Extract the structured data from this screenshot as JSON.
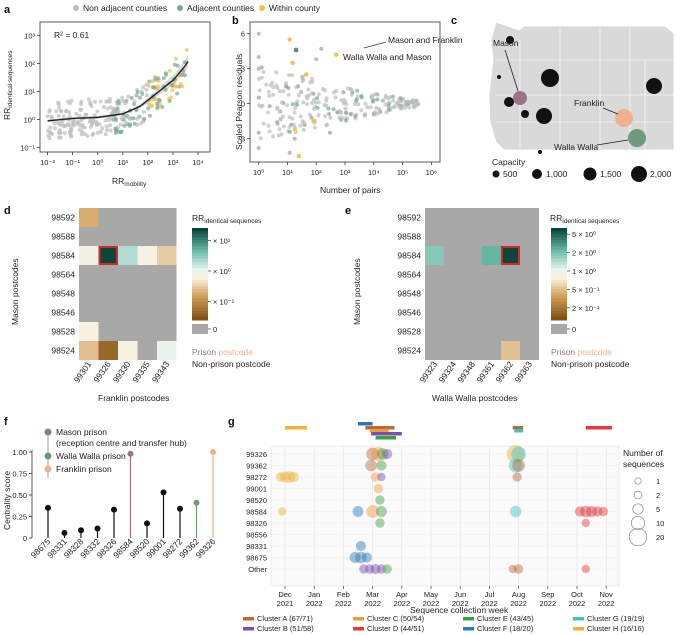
{
  "panels": {
    "a": "a",
    "b": "b",
    "c": "c",
    "d": "d",
    "e": "e",
    "f": "f",
    "g": "g"
  },
  "legend_top": [
    {
      "name": "Non adjacent counties",
      "color": "#bdbdbd"
    },
    {
      "name": "Adjacent counties",
      "color": "#7fa693"
    },
    {
      "name": "Within county",
      "color": "#f2c14e"
    }
  ],
  "colors": {
    "nonadj": "#bdbdbd",
    "adj": "#7fa693",
    "within": "#f2c14e",
    "mason": "#9b7384",
    "franklin": "#eeb28d",
    "walla": "#6f9a7c",
    "highlight": "#d62728"
  },
  "chart_data": [
    {
      "id": "a",
      "type": "scatter",
      "annotation": "R² = 0.61",
      "xlabel": "RR mobility",
      "ylabel": "RR identical sequences",
      "xscale": "log",
      "yscale": "log",
      "xlim": [
        0.005,
        30000
      ],
      "ylim": [
        0.07,
        3000
      ],
      "xticks": [
        "10⁻²",
        "10⁻¹",
        "10⁰",
        "10¹",
        "10²",
        "10³",
        "10⁴"
      ],
      "yticks": [
        "10⁻¹",
        "10⁰",
        "10¹",
        "10²",
        "10³"
      ],
      "trend": [
        [
          0.01,
          0.9
        ],
        [
          0.1,
          1.1
        ],
        [
          1,
          1.2
        ],
        [
          10,
          1.6
        ],
        [
          50,
          3
        ],
        [
          200,
          8
        ],
        [
          1000,
          25
        ],
        [
          3000,
          80
        ],
        [
          5000,
          160
        ]
      ]
    },
    {
      "id": "b",
      "type": "scatter",
      "xlabel": "Number of pairs",
      "ylabel": "Scaled Pearson residuals",
      "xscale": "log",
      "xlim": [
        0.5,
        2000000
      ],
      "ylim": [
        -5,
        7
      ],
      "xticks": [
        "10⁰",
        "10¹",
        "10²",
        "10³",
        "10⁴",
        "10⁵",
        "10⁶"
      ],
      "yticks": [
        "-3",
        "0",
        "3",
        "6"
      ],
      "annotations": [
        "Mason and Franklin",
        "Walla Walla and Mason"
      ]
    },
    {
      "id": "c",
      "type": "map",
      "labels": [
        "Mason",
        "Franklin",
        "Walla Walla"
      ],
      "capacity_title": "Capacity",
      "capacity_values": [
        500,
        1000,
        1500,
        2000
      ],
      "capacity_labels": [
        "500",
        "1,000",
        "1,500",
        "2,000"
      ]
    },
    {
      "id": "d",
      "type": "heatmap",
      "xlabel": "Franklin postcodes",
      "ylabel": "Mason postcodes",
      "x": [
        "99301",
        "99326",
        "99330",
        "99335",
        "99343"
      ],
      "y": [
        "98592",
        "98588",
        "98584",
        "98564",
        "98548",
        "98546",
        "98528",
        "98524"
      ],
      "values": [
        [
          0.3,
          0,
          0,
          0,
          0
        ],
        [
          0,
          0,
          0,
          0,
          0
        ],
        [
          1.2,
          30,
          3,
          1,
          0.5
        ],
        [
          0,
          0,
          0,
          0,
          0
        ],
        [
          0,
          0,
          0,
          0,
          0
        ],
        [
          0,
          0,
          0,
          0,
          0
        ],
        [
          1.0,
          0,
          0,
          0,
          0
        ],
        [
          0.4,
          0.08,
          1,
          0,
          1.5
        ]
      ],
      "highlight": {
        "x": "99326",
        "y": "98584"
      },
      "colorbar_title": "RR identical sequences",
      "colorbar_ticks": [
        "× 10¹",
        "× 10⁰",
        "× 10⁻¹",
        "0"
      ],
      "legend": {
        "prison_word1": "Prison",
        "prison_word2": "postcode",
        "nonprison": "Non-prison postcode"
      }
    },
    {
      "id": "e",
      "type": "heatmap",
      "xlabel": "Walla Walla postcodes",
      "ylabel": "Mason postcodes",
      "x": [
        "99323",
        "99324",
        "99348",
        "99361",
        "99362",
        "99363"
      ],
      "y": [
        "98592",
        "98588",
        "98584",
        "98564",
        "98548",
        "98546",
        "98528",
        "98524"
      ],
      "values": [
        [
          0,
          0,
          0,
          0,
          0,
          0
        ],
        [
          0,
          0,
          0,
          0,
          0,
          0
        ],
        [
          1.5,
          0,
          0,
          2,
          6,
          0
        ],
        [
          0,
          0,
          0,
          0,
          0,
          0
        ],
        [
          0,
          0,
          0,
          0,
          0,
          0
        ],
        [
          0,
          0,
          0,
          0,
          0,
          0
        ],
        [
          0,
          0,
          0,
          0,
          0,
          0
        ],
        [
          0,
          0,
          0,
          0,
          0.25,
          0
        ]
      ],
      "highlight": {
        "x": "99362",
        "y": "98584"
      },
      "colorbar_title": "RR identical sequences",
      "colorbar_ticks": [
        "5 × 10⁰",
        "2 × 10⁰",
        "1 × 10⁰",
        "5 × 10⁻¹",
        "2 × 10⁻¹",
        "0"
      ],
      "legend": {
        "prison_word1": "Prison",
        "prison_word2": "postcode",
        "nonprison": "Non-prison postcode"
      }
    },
    {
      "id": "f",
      "type": "lollipop",
      "ylabel": "Centrality score",
      "ylim": [
        0,
        1
      ],
      "yticks": [
        "0",
        "0.25",
        "0.50",
        "0.75",
        "1.00"
      ],
      "categories": [
        "98675",
        "98331",
        "98328",
        "98332",
        "98326",
        "98584",
        "98520",
        "99001",
        "98272",
        "99362",
        "99326"
      ],
      "values": [
        0.35,
        0.06,
        0.09,
        0.11,
        0.33,
        0.98,
        0.17,
        0.53,
        0.34,
        0.41,
        1.0
      ],
      "legend": [
        {
          "name": "Mason prison",
          "sub": "(reception centre and transfer hub)",
          "color": "#9b7384"
        },
        {
          "name": "Walla Walla prison",
          "color": "#6f9a7c"
        },
        {
          "name": "Franklin prison",
          "color": "#eeb28d"
        }
      ]
    },
    {
      "id": "g",
      "type": "scatter",
      "xlabel": "Sequence collection week",
      "yrows": [
        "99326",
        "99362",
        "98272",
        "99001",
        "98520",
        "98584",
        "98326",
        "98556",
        "98331",
        "98675",
        "Other"
      ],
      "xticks": [
        "Dec 2021",
        "Jan 2022",
        "Feb 2022",
        "Mar 2022",
        "Apr 2022",
        "May 2022",
        "Jun 2022",
        "Jul 2022",
        "Aug 2022",
        "Sep 2022",
        "Oct 2022",
        "Nov 2022"
      ],
      "size_title": "Number of sequences",
      "size_values": [
        1,
        2,
        5,
        10,
        20
      ],
      "clusters": [
        {
          "name": "Cluster A (67/71)",
          "color": "#b86a3a"
        },
        {
          "name": "Cluster B (51/58)",
          "color": "#7b4fb0"
        },
        {
          "name": "Cluster C (50/54)",
          "color": "#f39a3a"
        },
        {
          "name": "Cluster D (44/51)",
          "color": "#e03a3a"
        },
        {
          "name": "Cluster E (43/45)",
          "color": "#3aa03a"
        },
        {
          "name": "Cluster F (18/20)",
          "color": "#2a7ab8"
        },
        {
          "name": "Cluster G (19/19)",
          "color": "#3ac4c4"
        },
        {
          "name": "Cluster H (16/16)",
          "color": "#eeb23a"
        }
      ],
      "spans": [
        {
          "cluster": 7,
          "start": 0.0,
          "end": 0.75
        },
        {
          "cluster": 5,
          "start": 2.5,
          "end": 3.0
        },
        {
          "cluster": 0,
          "start": 2.75,
          "end": 3.75
        },
        {
          "cluster": 2,
          "start": 2.9,
          "end": 3.55
        },
        {
          "cluster": 1,
          "start": 2.95,
          "end": 4.0
        },
        {
          "cluster": 4,
          "start": 3.1,
          "end": 3.8
        },
        {
          "cluster": 0,
          "start": 7.8,
          "end": 8.15
        },
        {
          "cluster": 6,
          "start": 7.85,
          "end": 8.15
        },
        {
          "cluster": 3,
          "start": 10.3,
          "end": 11.2
        }
      ],
      "points": [
        {
          "row": 0,
          "t": 3.0,
          "n": 8,
          "c": 0
        },
        {
          "row": 0,
          "t": 3.2,
          "n": 10,
          "c": 2
        },
        {
          "row": 0,
          "t": 3.35,
          "n": 6,
          "c": 4
        },
        {
          "row": 0,
          "t": 3.5,
          "n": 4,
          "c": 1
        },
        {
          "row": 0,
          "t": 7.9,
          "n": 20,
          "c": 7
        },
        {
          "row": 0,
          "t": 8.0,
          "n": 12,
          "c": 6
        },
        {
          "row": 1,
          "t": 2.95,
          "n": 6,
          "c": 0
        },
        {
          "row": 1,
          "t": 3.3,
          "n": 4,
          "c": 4
        },
        {
          "row": 1,
          "t": 7.9,
          "n": 10,
          "c": 6
        },
        {
          "row": 1,
          "t": 8.0,
          "n": 8,
          "c": 0
        },
        {
          "row": 2,
          "t": -0.15,
          "n": 3,
          "c": 7
        },
        {
          "row": 2,
          "t": 0.0,
          "n": 5,
          "c": 7
        },
        {
          "row": 2,
          "t": 0.15,
          "n": 6,
          "c": 7
        },
        {
          "row": 2,
          "t": 0.3,
          "n": 4,
          "c": 7
        },
        {
          "row": 2,
          "t": 3.1,
          "n": 3,
          "c": 2
        },
        {
          "row": 2,
          "t": 3.3,
          "n": 2,
          "c": 1
        },
        {
          "row": 2,
          "t": 7.95,
          "n": 3,
          "c": 0
        },
        {
          "row": 3,
          "t": 3.2,
          "n": 3,
          "c": 2
        },
        {
          "row": 4,
          "t": 3.25,
          "n": 3,
          "c": 4
        },
        {
          "row": 5,
          "t": -0.1,
          "n": 2,
          "c": 7
        },
        {
          "row": 5,
          "t": 2.5,
          "n": 5,
          "c": 5
        },
        {
          "row": 5,
          "t": 3.0,
          "n": 8,
          "c": 2
        },
        {
          "row": 5,
          "t": 3.3,
          "n": 5,
          "c": 4
        },
        {
          "row": 5,
          "t": 7.9,
          "n": 6,
          "c": 6
        },
        {
          "row": 5,
          "t": 10.1,
          "n": 4,
          "c": 3
        },
        {
          "row": 5,
          "t": 10.3,
          "n": 6,
          "c": 3
        },
        {
          "row": 5,
          "t": 10.5,
          "n": 5,
          "c": 3
        },
        {
          "row": 5,
          "t": 10.7,
          "n": 4,
          "c": 3
        },
        {
          "row": 5,
          "t": 10.9,
          "n": 3,
          "c": 3
        },
        {
          "row": 6,
          "t": 3.25,
          "n": 3,
          "c": 4
        },
        {
          "row": 6,
          "t": 10.3,
          "n": 2,
          "c": 3
        },
        {
          "row": 8,
          "t": 2.6,
          "n": 4,
          "c": 5
        },
        {
          "row": 9,
          "t": 2.4,
          "n": 5,
          "c": 5
        },
        {
          "row": 9,
          "t": 2.6,
          "n": 6,
          "c": 5
        },
        {
          "row": 9,
          "t": 2.8,
          "n": 4,
          "c": 5
        },
        {
          "row": 10,
          "t": 2.7,
          "n": 3,
          "c": 1
        },
        {
          "row": 10,
          "t": 2.9,
          "n": 3,
          "c": 1
        },
        {
          "row": 10,
          "t": 3.1,
          "n": 4,
          "c": 1
        },
        {
          "row": 10,
          "t": 3.3,
          "n": 3,
          "c": 1
        },
        {
          "row": 10,
          "t": 3.5,
          "n": 3,
          "c": 4
        },
        {
          "row": 10,
          "t": 7.8,
          "n": 2,
          "c": 0
        },
        {
          "row": 10,
          "t": 8.0,
          "n": 3,
          "c": 0
        },
        {
          "row": 10,
          "t": 10.3,
          "n": 2,
          "c": 3
        }
      ]
    }
  ]
}
